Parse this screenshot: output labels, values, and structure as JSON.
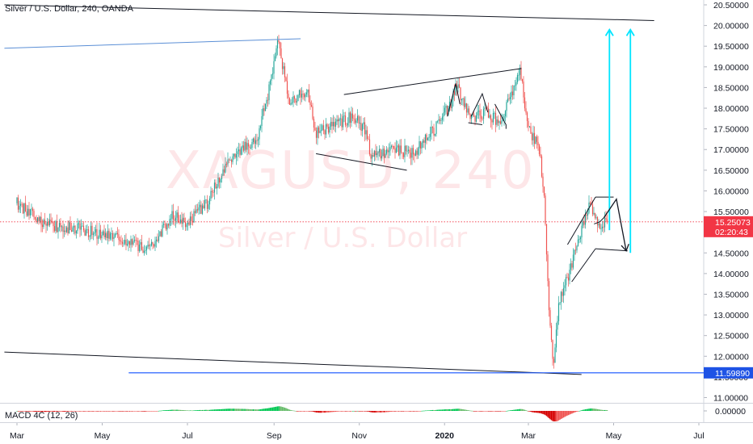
{
  "chart_title": "Silver / U.S. Dollar, 240, OANDA",
  "watermark": {
    "symbol": "XAGUSD, 240",
    "name": "Silver / U.S. Dollar"
  },
  "macd_title": "MACD 4C (12, 26)",
  "colors": {
    "up": "#26a69a",
    "down": "#ef5350",
    "cyan": "#00e5ff",
    "blue": "#2962ff",
    "price_badge": "#f23645",
    "support_badge": "#1e53e5"
  },
  "chart_data": {
    "type": "candlestick",
    "symbol": "XAGUSD",
    "ylim": [
      10.8,
      20.55
    ],
    "y_ticks": [
      "20.50000",
      "20.00000",
      "19.50000",
      "19.00000",
      "18.50000",
      "18.00000",
      "17.50000",
      "17.00000",
      "16.50000",
      "16.00000",
      "15.50000",
      "15.00000",
      "14.50000",
      "14.00000",
      "13.50000",
      "13.00000",
      "12.50000",
      "12.00000",
      "11.50000",
      "11.00000"
    ],
    "x_ticks": [
      "Mar",
      "May",
      "Jul",
      "Sep",
      "Nov",
      "2020",
      "Mar",
      "May",
      "Jul"
    ],
    "current_price": {
      "label": "15.25073",
      "value": 15.25073,
      "countdown": "02:20:43"
    },
    "support_level": {
      "label": "11.59890",
      "value": 11.5989
    },
    "macd_axis_label": "0.00000",
    "price_path": [
      {
        "date": "2019-03-01",
        "price": 15.7
      },
      {
        "date": "2019-03-20",
        "price": 15.2
      },
      {
        "date": "2019-04-10",
        "price": 15.1
      },
      {
        "date": "2019-05-01",
        "price": 14.95
      },
      {
        "date": "2019-05-20",
        "price": 14.8
      },
      {
        "date": "2019-06-01",
        "price": 14.6
      },
      {
        "date": "2019-06-10",
        "price": 14.9
      },
      {
        "date": "2019-06-20",
        "price": 15.4
      },
      {
        "date": "2019-07-01",
        "price": 15.2
      },
      {
        "date": "2019-07-15",
        "price": 15.7
      },
      {
        "date": "2019-07-25",
        "price": 16.4
      },
      {
        "date": "2019-08-05",
        "price": 16.9
      },
      {
        "date": "2019-08-20",
        "price": 17.3
      },
      {
        "date": "2019-08-28",
        "price": 18.4
      },
      {
        "date": "2019-09-04",
        "price": 19.6
      },
      {
        "date": "2019-09-12",
        "price": 18.2
      },
      {
        "date": "2019-09-25",
        "price": 18.4
      },
      {
        "date": "2019-10-01",
        "price": 17.4
      },
      {
        "date": "2019-10-15",
        "price": 17.6
      },
      {
        "date": "2019-10-28",
        "price": 17.8
      },
      {
        "date": "2019-11-05",
        "price": 17.5
      },
      {
        "date": "2019-11-10",
        "price": 16.8
      },
      {
        "date": "2019-11-25",
        "price": 17.0
      },
      {
        "date": "2019-12-10",
        "price": 16.9
      },
      {
        "date": "2019-12-25",
        "price": 17.5
      },
      {
        "date": "2020-01-05",
        "price": 18.1
      },
      {
        "date": "2020-01-10",
        "price": 18.5
      },
      {
        "date": "2020-01-20",
        "price": 17.8
      },
      {
        "date": "2020-02-01",
        "price": 17.9
      },
      {
        "date": "2020-02-10",
        "price": 17.6
      },
      {
        "date": "2020-02-24",
        "price": 18.9
      },
      {
        "date": "2020-03-01",
        "price": 17.5
      },
      {
        "date": "2020-03-09",
        "price": 17.0
      },
      {
        "date": "2020-03-12",
        "price": 16.0
      },
      {
        "date": "2020-03-16",
        "price": 12.8
      },
      {
        "date": "2020-03-19",
        "price": 11.8
      },
      {
        "date": "2020-03-23",
        "price": 13.4
      },
      {
        "date": "2020-03-30",
        "price": 14.0
      },
      {
        "date": "2020-04-06",
        "price": 14.8
      },
      {
        "date": "2020-04-14",
        "price": 15.7
      },
      {
        "date": "2020-04-20",
        "price": 15.1
      },
      {
        "date": "2020-04-27",
        "price": 15.25
      }
    ],
    "trendlines": [
      {
        "from": {
          "date": "2019-02-20",
          "price": 20.5
        },
        "to": {
          "date": "2020-05-30",
          "price": 20.12
        },
        "color": "#131722"
      },
      {
        "from": {
          "date": "2019-02-20",
          "price": 19.45
        },
        "to": {
          "date": "2019-09-20",
          "price": 19.68
        },
        "color": "#5b8fd6"
      },
      {
        "from": {
          "date": "2019-10-21",
          "price": 18.33
        },
        "to": {
          "date": "2020-02-25",
          "price": 18.96
        },
        "color": "#131722"
      },
      {
        "from": {
          "date": "2019-10-01",
          "price": 16.9
        },
        "to": {
          "date": "2019-12-05",
          "price": 16.5
        },
        "color": "#131722"
      },
      {
        "from": {
          "date": "2019-02-20",
          "price": 12.1
        },
        "to": {
          "date": "2020-04-08",
          "price": 11.56
        },
        "color": "#131722"
      },
      {
        "from": {
          "date": "2019-05-20",
          "price": 11.6
        },
        "to": {
          "date": "2020-07-20",
          "price": 11.6
        },
        "color": "#2962ff"
      },
      {
        "from": {
          "date": "2020-03-29",
          "price": 14.7
        },
        "to": {
          "date": "2020-04-18",
          "price": 15.85
        },
        "color": "#131722"
      },
      {
        "from": {
          "date": "2020-04-18",
          "price": 15.85
        },
        "to": {
          "date": "2020-05-01",
          "price": 15.85
        },
        "color": "#131722"
      },
      {
        "from": {
          "date": "2020-04-01",
          "price": 13.8
        },
        "to": {
          "date": "2020-04-18",
          "price": 14.6
        },
        "color": "#131722"
      },
      {
        "from": {
          "date": "2020-04-18",
          "price": 14.6
        },
        "to": {
          "date": "2020-05-11",
          "price": 14.55
        },
        "color": "#131722"
      }
    ],
    "arrows": [
      {
        "from": {
          "date": "2020-04-28",
          "price": 15.05
        },
        "to": {
          "date": "2020-04-28",
          "price": 19.9
        },
        "color": "#00e5ff"
      },
      {
        "from": {
          "date": "2020-05-13",
          "price": 14.5
        },
        "to": {
          "date": "2020-05-13",
          "price": 19.9
        },
        "color": "#00e5ff"
      },
      {
        "from": {
          "date": "2020-05-03",
          "price": 15.8
        },
        "to": {
          "date": "2020-05-10",
          "price": 14.55
        },
        "color": "#131722"
      }
    ]
  }
}
